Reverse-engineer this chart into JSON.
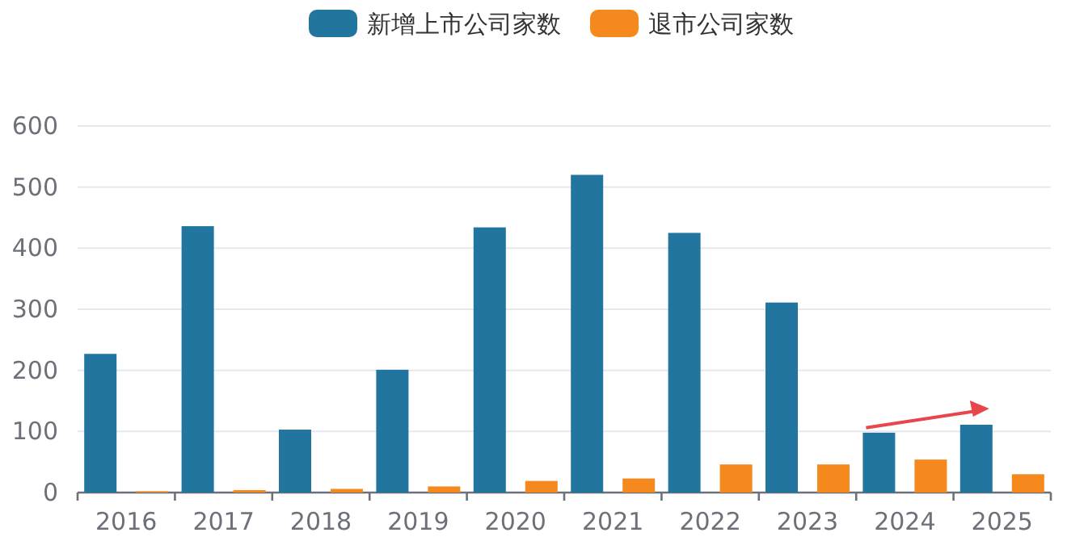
{
  "chart_data": {
    "type": "bar",
    "categories": [
      "2016",
      "2017",
      "2018",
      "2019",
      "2020",
      "2021",
      "2022",
      "2023",
      "2024",
      "2025"
    ],
    "series": [
      {
        "name": "新增上市公司家数",
        "color": "#21759f",
        "values": [
          227,
          436,
          103,
          201,
          434,
          520,
          425,
          311,
          98,
          111
        ]
      },
      {
        "name": "退市公司家数",
        "color": "#f5891d",
        "values": [
          2,
          4,
          6,
          10,
          19,
          23,
          46,
          46,
          54,
          30
        ]
      }
    ],
    "ylim": [
      0,
      600
    ],
    "yticks": [
      0,
      100,
      200,
      300,
      400,
      500,
      600
    ],
    "grid": "y",
    "legend": "top"
  }
}
